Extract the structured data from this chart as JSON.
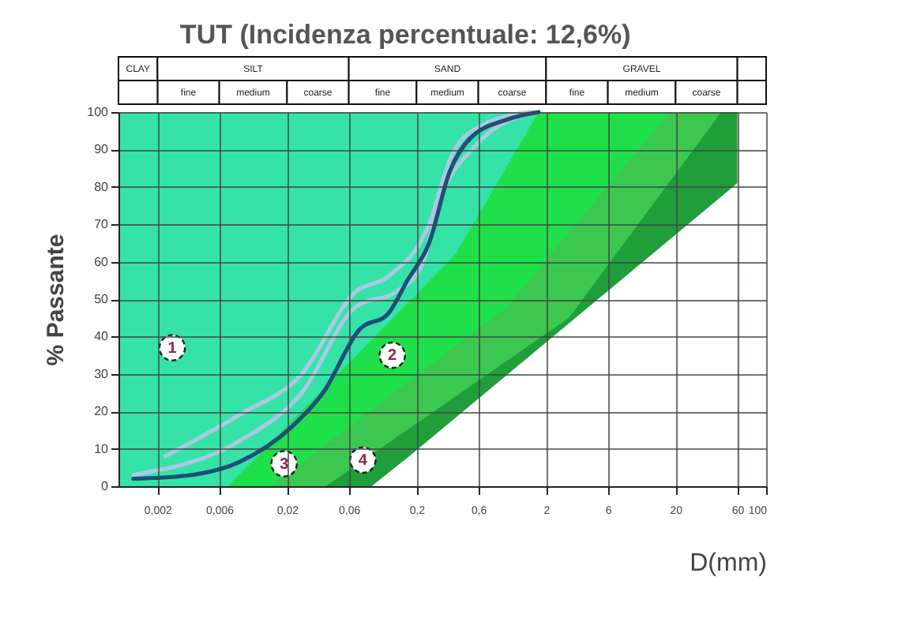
{
  "chart_data": {
    "type": "line",
    "title": "TUT (Incidenza percentuale: 12,6%)",
    "xlabel": "D(mm)",
    "ylabel": "% Passante",
    "log": "x",
    "grid": true,
    "xlim": [
      0.001,
      100
    ],
    "xticks": [
      {
        "value": 0.002,
        "label": "0,002"
      },
      {
        "value": 0.006,
        "label": "0,006"
      },
      {
        "value": 0.02,
        "label": "0,02"
      },
      {
        "value": 0.06,
        "label": "0,06"
      },
      {
        "value": 0.2,
        "label": "0,2"
      },
      {
        "value": 0.6,
        "label": "0,6"
      },
      2,
      6,
      20,
      60,
      100
    ],
    "ylim": [
      0,
      100
    ],
    "yticks": [
      0,
      10,
      20,
      30,
      40,
      50,
      60,
      70,
      80,
      90,
      100
    ],
    "series": [
      {
        "type": "area",
        "color": "#35e3a8",
        "x": [
          0.001,
          1.75
        ],
        "values": [
          100,
          100
        ]
      },
      {
        "type": "area",
        "color": "#1fe04a",
        "x": [
          0.007,
          0.4,
          1.75,
          18
        ],
        "values": [
          0,
          62,
          100,
          100
        ]
      },
      {
        "type": "area",
        "color": "#3cc850",
        "x": [
          0.015,
          1,
          18,
          45
        ],
        "values": [
          0,
          48,
          100,
          100
        ]
      },
      {
        "type": "area",
        "color": "#1f9e3a",
        "x": [
          0.04,
          3,
          45,
          60
        ],
        "values": [
          0,
          45,
          100,
          100
        ]
      },
      {
        "type": "area",
        "color": "#ffffff",
        "x": [
          0.09,
          0.17,
          60
        ],
        "values": [
          0,
          7.6,
          81
        ]
      },
      {
        "color": "#a9c9e2",
        "x": [
          0.0023,
          0.0085,
          0.026,
          0.068,
          0.12,
          0.25,
          0.37,
          0.6,
          1.5
        ],
        "values": [
          8,
          19,
          30,
          52,
          56,
          70,
          88,
          96,
          100
        ]
      },
      {
        "color": "#a9c9e2",
        "x": [
          0.0013,
          0.0085,
          0.026,
          0.068,
          0.14,
          0.22,
          0.3,
          0.57,
          1.6
        ],
        "values": [
          3,
          12,
          25,
          48,
          52,
          59,
          76,
          91,
          100
        ]
      },
      {
        "color": "#1f4e79",
        "x": [
          0.0013,
          0.0033,
          0.0085,
          0.022,
          0.038,
          0.073,
          0.12,
          0.17,
          0.25,
          0.36,
          0.52,
          1,
          1.75
        ],
        "values": [
          2,
          2.8,
          6.4,
          16,
          25,
          42,
          46,
          55,
          65,
          84,
          93,
          98,
          100
        ]
      }
    ],
    "annotations": [
      "CLAY",
      "SILT",
      "SAND",
      "GRAVEL",
      "fine",
      "medium",
      "coarse",
      "fine",
      "medium",
      "coarse",
      "fine",
      "medium",
      "coarse",
      {
        "text": "1",
        "x": 0.0026,
        "y": 37
      },
      {
        "text": "2",
        "x": 0.13,
        "y": 35
      },
      {
        "text": "3",
        "x": 0.019,
        "y": 6
      },
      {
        "text": "4",
        "x": 0.077,
        "y": 7
      }
    ]
  }
}
